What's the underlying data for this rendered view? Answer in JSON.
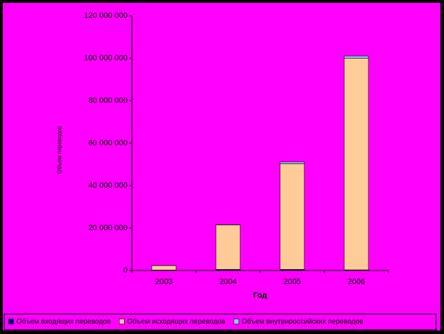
{
  "chart_data": {
    "type": "bar",
    "stacked": true,
    "x_label": "Год",
    "y_label": "Объем переводов",
    "categories": [
      "2003",
      "2004",
      "2005",
      "2006"
    ],
    "series": [
      {
        "name": "Объем входящих переводов",
        "color": "#000080",
        "values": [
          200000,
          500000,
          500000,
          300000
        ]
      },
      {
        "name": "Объем исходящих переводов",
        "color": "#ffcc99",
        "values": [
          2100000,
          21000000,
          49800000,
          99700000
        ]
      },
      {
        "name": "Объем внутрироссийских переводов",
        "color": "#99ccff",
        "values": [
          50000,
          100000,
          800000,
          1000000
        ]
      }
    ],
    "ylim": [
      0,
      120000000
    ],
    "yticks": [
      0,
      {
        "value": 20000000,
        "label": "20 000 000"
      },
      {
        "value": 40000000,
        "label": "40 000 000"
      },
      {
        "value": 60000000,
        "label": "60 000 000"
      },
      {
        "value": 80000000,
        "label": "80 000 000"
      },
      {
        "value": 100000000,
        "label": "100 000 000"
      },
      {
        "value": 120000000,
        "label": "120 000 000"
      }
    ],
    "grid": false,
    "legend": "bottom",
    "background": "#ff00ff"
  }
}
